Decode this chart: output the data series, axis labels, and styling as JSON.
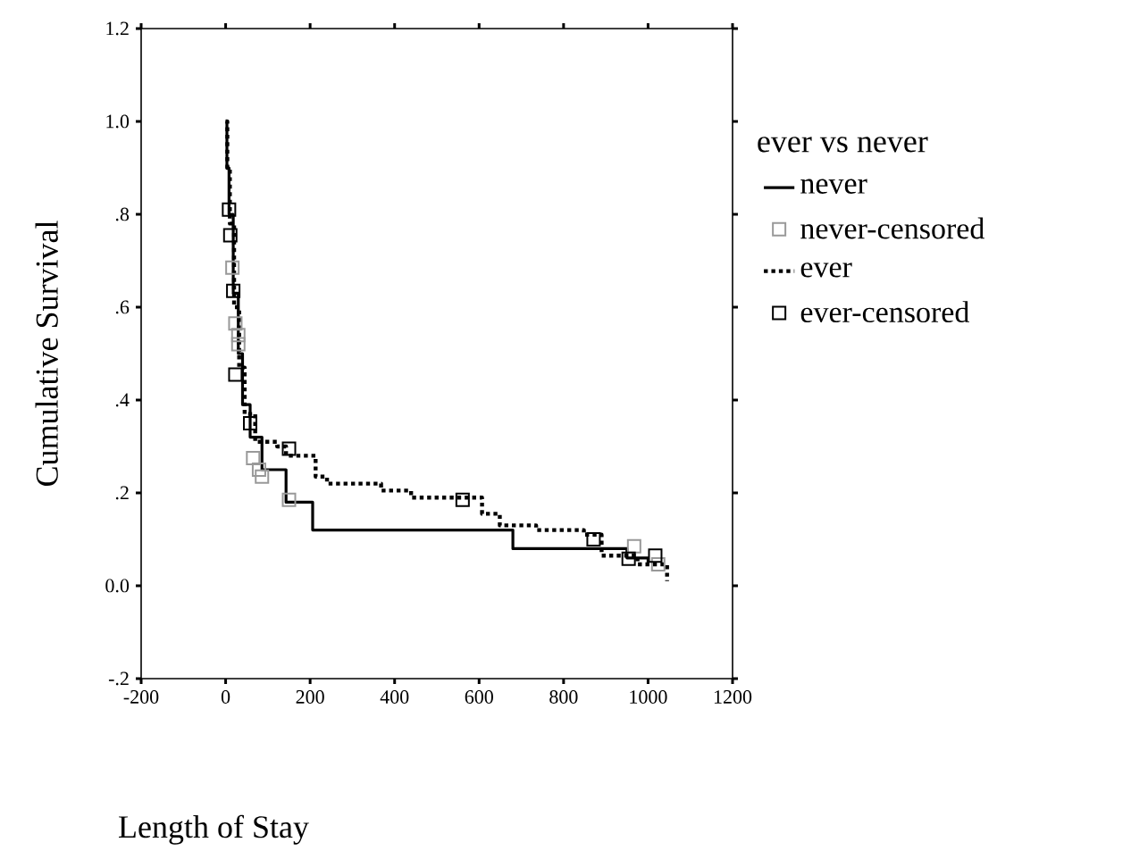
{
  "chart_data": {
    "type": "step",
    "xlabel": "Length of Stay",
    "ylabel": "Cumulative Survival",
    "legend_title": "ever vs never",
    "xlim": [
      -200,
      1200
    ],
    "xticks": [
      -200,
      0,
      200,
      400,
      600,
      800,
      1000,
      1200
    ],
    "ylim": [
      -0.2,
      1.2
    ],
    "yticks": [
      {
        "value": -0.2,
        "label": "-.2"
      },
      {
        "value": 0,
        "label": "0.0"
      },
      {
        "value": 0.2,
        "label": ".2"
      },
      {
        "value": 0.4,
        "label": ".4"
      },
      {
        "value": 0.6,
        "label": ".6"
      },
      {
        "value": 0.8,
        "label": ".8"
      },
      {
        "value": 1.0,
        "label": "1.0"
      },
      {
        "value": 1.2,
        "label": "1.2"
      }
    ],
    "grid": false,
    "legend": "right",
    "series": [
      {
        "name": "never",
        "color": "#000000",
        "line_style": "solid",
        "x": [
          0,
          3,
          8,
          18,
          30,
          40,
          58,
          86,
          143,
          206,
          680,
          950,
          1000
        ],
        "values": [
          1.0,
          0.9,
          0.8,
          0.63,
          0.5,
          0.39,
          0.32,
          0.25,
          0.18,
          0.12,
          0.08,
          0.06,
          0.05
        ]
      },
      {
        "name": "never-censored",
        "type": "scatter",
        "marker": "square",
        "color": "#999999",
        "x": [
          16,
          23,
          30,
          30,
          65,
          79,
          86,
          150,
          967,
          1024
        ],
        "values": [
          0.685,
          0.565,
          0.54,
          0.52,
          0.275,
          0.25,
          0.235,
          0.185,
          0.085,
          0.046
        ]
      },
      {
        "name": "ever",
        "color": "#000000",
        "line_style": "dotted",
        "x": [
          0,
          4,
          10,
          20,
          32,
          45,
          70,
          122,
          143,
          213,
          240,
          368,
          439,
          566,
          607,
          649,
          735,
          848,
          890,
          975,
          1045
        ],
        "values": [
          1.0,
          0.9,
          0.78,
          0.6,
          0.47,
          0.37,
          0.31,
          0.3,
          0.28,
          0.235,
          0.22,
          0.205,
          0.19,
          0.19,
          0.155,
          0.13,
          0.12,
          0.11,
          0.065,
          0.046,
          0.01
        ]
      },
      {
        "name": "ever-censored",
        "type": "scatter",
        "marker": "square",
        "color": "#000000",
        "x": [
          8,
          11,
          18,
          23,
          58,
          150,
          561,
          871,
          954,
          1017
        ],
        "values": [
          0.81,
          0.755,
          0.635,
          0.455,
          0.35,
          0.295,
          0.185,
          0.1,
          0.058,
          0.065
        ]
      }
    ]
  }
}
